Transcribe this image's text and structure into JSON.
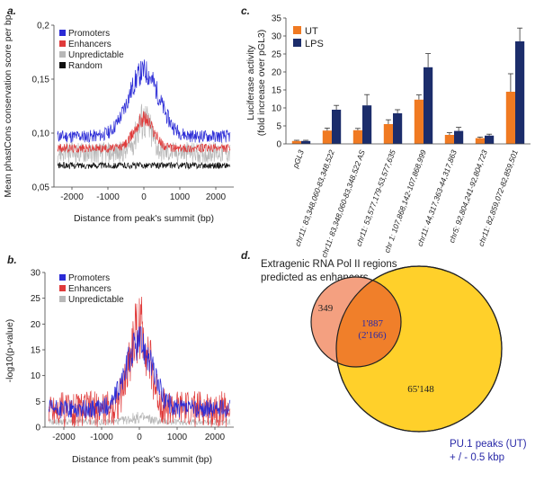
{
  "chart_data": [
    {
      "panel_label": "a.",
      "type": "line",
      "xlabel": "Distance from peak's summit (bp)",
      "ylabel": "Mean phastCons conservation score per bp",
      "xlim": [
        -2500,
        2500
      ],
      "ylim": [
        0.05,
        0.2
      ],
      "xticks": [
        "-2000",
        "-1000",
        "0",
        "1000",
        "2000"
      ],
      "xtick_values": [
        -2000,
        -1000,
        0,
        1000,
        2000
      ],
      "yticks": [
        "0,05",
        "0,10",
        "0,15",
        "0,2"
      ],
      "ytick_values": [
        0.05,
        0.1,
        0.15,
        0.2
      ],
      "series": [
        {
          "name": "Promoters",
          "color": "#2b2bd6",
          "base": 0.097,
          "peak": 0.06,
          "width": 420,
          "noise": 0.006
        },
        {
          "name": "Enhancers",
          "color": "#e03a3a",
          "base": 0.086,
          "peak": 0.028,
          "width": 260,
          "noise": 0.004
        },
        {
          "name": "Unpredictable",
          "color": "#b8b8b8",
          "base": 0.082,
          "peak": 0.03,
          "width": 200,
          "noise": 0.01
        },
        {
          "name": "Random",
          "color": "#111111",
          "base": 0.07,
          "peak": 0.0,
          "width": 100,
          "noise": 0.003
        }
      ]
    },
    {
      "panel_label": "b.",
      "type": "line",
      "xlabel": "Distance from peak's summit (bp)",
      "ylabel": "-log10(p-value)",
      "xlim": [
        -2500,
        2500
      ],
      "ylim": [
        0,
        30
      ],
      "xticks": [
        "-2000",
        "-1000",
        "0",
        "1000",
        "2000"
      ],
      "xtick_values": [
        -2000,
        -1000,
        0,
        1000,
        2000
      ],
      "yticks": [
        "0",
        "5",
        "10",
        "15",
        "20",
        "25",
        "30"
      ],
      "ytick_values": [
        0,
        5,
        10,
        15,
        20,
        25,
        30
      ],
      "series": [
        {
          "name": "Promoters",
          "color": "#2b2bd6",
          "base": 3.5,
          "peak": 13,
          "width": 350,
          "noise": 1.8
        },
        {
          "name": "Enhancers",
          "color": "#e03a3a",
          "base": 3.5,
          "peak": 16,
          "width": 260,
          "noise": 3.5
        },
        {
          "name": "Unpredictable",
          "color": "#b8b8b8",
          "base": 1.0,
          "peak": 0.8,
          "width": 300,
          "noise": 0.6
        }
      ]
    },
    {
      "panel_label": "c.",
      "type": "bar",
      "ylabel": "Luciferase activity",
      "ylabel2": "(fold increase over pGL3)",
      "ylim": [
        0,
        35
      ],
      "yticks": [
        "0",
        "5",
        "10",
        "15",
        "20",
        "25",
        "30",
        "35"
      ],
      "ytick_values": [
        0,
        5,
        10,
        15,
        20,
        25,
        30,
        35
      ],
      "categories": [
        "pGL3",
        "chr11: 83,348,060-83,348,522",
        "chr11: 83,348,060-83,348,522 AS",
        "chr11: 53,577,179-53,577,635",
        "chr 1: 107,868,142-107,868,999",
        "chr11: 44,317,363-44,317,863",
        "chr5: 92,804,241-92,804,723",
        "chr11: 82,859,072-82,859,501"
      ],
      "series": [
        {
          "name": "UT",
          "color": "#f07a22",
          "values": [
            0.8,
            3.7,
            3.8,
            5.5,
            12.3,
            2.5,
            1.6,
            14.5
          ],
          "errors": [
            0.2,
            0.7,
            0.5,
            1.2,
            1.3,
            0.6,
            0.3,
            5.0
          ]
        },
        {
          "name": "LPS",
          "color": "#1c2d6b",
          "values": [
            0.8,
            9.5,
            10.7,
            8.5,
            21.3,
            3.6,
            2.3,
            28.5
          ],
          "errors": [
            0.2,
            1.2,
            3.0,
            1.0,
            3.8,
            1.0,
            0.4,
            3.7
          ]
        }
      ]
    }
  ],
  "venn": {
    "panel_label": "d.",
    "title_line1": "Extragenic RNA Pol II regions",
    "title_line2": "predicted as enhancers",
    "left_only": "349",
    "overlap": "1'887",
    "overlap_sub": "(2'166)",
    "right_only": "65'148",
    "caption_line1": "PU.1 peaks (UT)",
    "caption_line2": "+ / - 0.5 kbp",
    "colors": {
      "left": "#f4a080",
      "overlap": "#f07f2a",
      "right": "#ffd02a",
      "caption": "#2a2aa8"
    }
  }
}
